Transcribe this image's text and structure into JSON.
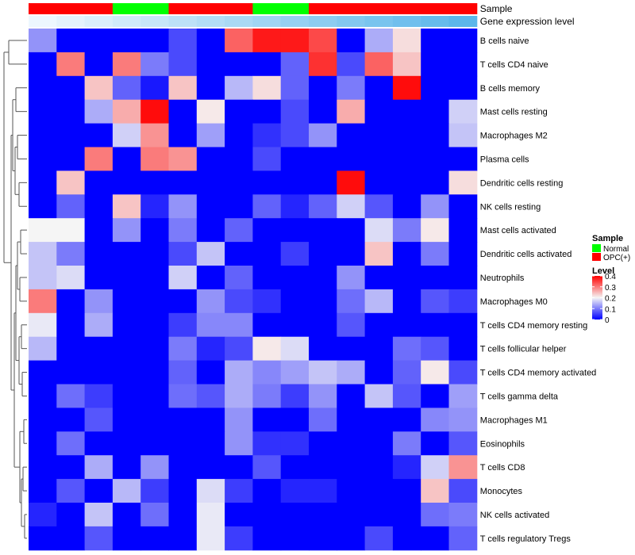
{
  "chart_data": {
    "type": "heatmap",
    "annotations": [
      {
        "name": "Sample",
        "key": "sample"
      },
      {
        "name": "Gene expression level",
        "key": "gene"
      }
    ],
    "columns": [
      {
        "sample": "OPC(+)",
        "gene": 0.03
      },
      {
        "sample": "OPC(+)",
        "gene": 0.06
      },
      {
        "sample": "OPC(+)",
        "gene": 0.09
      },
      {
        "sample": "Normal",
        "gene": 0.12
      },
      {
        "sample": "Normal",
        "gene": 0.15
      },
      {
        "sample": "OPC(+)",
        "gene": 0.18
      },
      {
        "sample": "OPC(+)",
        "gene": 0.21
      },
      {
        "sample": "OPC(+)",
        "gene": 0.24
      },
      {
        "sample": "Normal",
        "gene": 0.27
      },
      {
        "sample": "Normal",
        "gene": 0.3
      },
      {
        "sample": "OPC(+)",
        "gene": 0.33
      },
      {
        "sample": "OPC(+)",
        "gene": 0.36
      },
      {
        "sample": "OPC(+)",
        "gene": 0.39
      },
      {
        "sample": "OPC(+)",
        "gene": 0.42
      },
      {
        "sample": "OPC(+)",
        "gene": 0.45
      },
      {
        "sample": "OPC(+)",
        "gene": 0.48
      }
    ],
    "rows": [
      "B cells naive",
      "T cells CD4 naive",
      "B cells memory",
      "Mast cells resting",
      "Macrophages M2",
      "Plasma cells",
      "Dendritic cells resting",
      "NK cells resting",
      "Mast cells activated",
      "Dendritic cells activated",
      "Neutrophils",
      "Macrophages M0",
      "T cells CD4 memory resting",
      "T cells follicular helper",
      "T cells CD4 memory activated",
      "T cells gamma delta",
      "Macrophages M1",
      "Eosinophils",
      "T cells CD8",
      "Monocytes",
      "NK cells activated",
      "T cells regulatory  Tregs"
    ],
    "values": [
      [
        0.12,
        0,
        0,
        0,
        0,
        0.06,
        0,
        0.32,
        0.38,
        0.38,
        0.34,
        0,
        0.14,
        0.22,
        0,
        0
      ],
      [
        0,
        0.3,
        0,
        0.3,
        0.1,
        0.06,
        0,
        0,
        0,
        0.08,
        0.36,
        0.06,
        0.32,
        0.24,
        0,
        0
      ],
      [
        0,
        0,
        0.24,
        0.08,
        0.02,
        0.24,
        0,
        0.15,
        0.22,
        0.08,
        0,
        0.1,
        0,
        0.39,
        0,
        0
      ],
      [
        0,
        0,
        0.14,
        0.26,
        0.39,
        0,
        0.21,
        0,
        0,
        0.06,
        0,
        0.26,
        0,
        0,
        0,
        0.17
      ],
      [
        0,
        0,
        0,
        0.17,
        0.28,
        0,
        0.13,
        0,
        0.04,
        0.06,
        0.12,
        0,
        0,
        0,
        0,
        0.16
      ],
      [
        0,
        0,
        0.3,
        0,
        0.3,
        0.28,
        0,
        0,
        0.06,
        0,
        0,
        0,
        0,
        0,
        0,
        0
      ],
      [
        0,
        0.24,
        0,
        0,
        0,
        0,
        0,
        0,
        0,
        0,
        0,
        0.39,
        0,
        0,
        0,
        0.22
      ],
      [
        0,
        0.08,
        0,
        0.24,
        0.03,
        0.12,
        0,
        0,
        0.08,
        0.03,
        0.08,
        0.17,
        0.07,
        0,
        0.12,
        0
      ],
      [
        0.2,
        0.2,
        0,
        0.12,
        0,
        0.1,
        0,
        0.08,
        0,
        0,
        0,
        0,
        0.18,
        0.1,
        0.21,
        0
      ],
      [
        0.16,
        0.1,
        0,
        0,
        0,
        0.06,
        0.16,
        0,
        0,
        0.05,
        0,
        0,
        0.24,
        0,
        0.1,
        0
      ],
      [
        0.16,
        0.18,
        0,
        0,
        0,
        0.17,
        0,
        0.08,
        0,
        0,
        0,
        0.12,
        0,
        0,
        0,
        0
      ],
      [
        0.3,
        0,
        0.12,
        0,
        0,
        0,
        0.12,
        0.06,
        0.04,
        0,
        0,
        0.09,
        0.15,
        0,
        0.07,
        0.05
      ],
      [
        0.19,
        0,
        0.14,
        0,
        0,
        0.05,
        0.11,
        0.11,
        0,
        0,
        0,
        0.07,
        0,
        0,
        0,
        0
      ],
      [
        0.15,
        0,
        0,
        0,
        0,
        0.1,
        0.03,
        0.06,
        0.21,
        0.18,
        0,
        0,
        0,
        0.09,
        0.07,
        0
      ],
      [
        0,
        0,
        0,
        0,
        0,
        0.08,
        0,
        0.14,
        0.11,
        0.13,
        0.16,
        0.14,
        0,
        0.08,
        0.21,
        0.06
      ],
      [
        0,
        0.09,
        0.05,
        0,
        0,
        0.09,
        0.07,
        0.14,
        0.1,
        0.05,
        0.12,
        0,
        0.16,
        0.07,
        0,
        0.13
      ],
      [
        0,
        0,
        0.07,
        0,
        0,
        0,
        0,
        0.12,
        0,
        0,
        0.09,
        0,
        0,
        0,
        0.11,
        0.12
      ],
      [
        0,
        0.09,
        0,
        0,
        0,
        0,
        0,
        0.12,
        0.04,
        0.04,
        0,
        0,
        0,
        0.1,
        0,
        0.07
      ],
      [
        0,
        0,
        0.14,
        0,
        0.12,
        0,
        0,
        0,
        0.07,
        0,
        0,
        0,
        0,
        0.03,
        0.17,
        0.28
      ],
      [
        0,
        0.07,
        0,
        0.15,
        0.05,
        0,
        0.18,
        0.05,
        0,
        0.03,
        0.03,
        0,
        0,
        0,
        0.24,
        0.06
      ],
      [
        0.03,
        0,
        0.16,
        0,
        0.09,
        0,
        0.19,
        0,
        0,
        0,
        0,
        0,
        0,
        0,
        0.09,
        0.1
      ],
      [
        0,
        0,
        0.07,
        0,
        0,
        0,
        0.19,
        0.05,
        0,
        0,
        0,
        0,
        0.06,
        0,
        0,
        0.08
      ]
    ],
    "color_scale": {
      "low": "#0000FF",
      "mid": "#F5F5F5",
      "high": "#FF0000",
      "min": 0,
      "mid_value": 0.2,
      "max": 0.4
    },
    "gene_scale": {
      "low": "#F7FBFF",
      "high": "#56B4E9",
      "min": 0,
      "max": 0.5
    },
    "legends": {
      "sample": {
        "title": "Sample",
        "entries": [
          {
            "label": "Normal",
            "color": "#00FF00"
          },
          {
            "label": "OPC(+)",
            "color": "#FF0000"
          }
        ]
      },
      "level": {
        "title": "Level",
        "ticks": [
          0.4,
          0.3,
          0.2,
          0.1,
          0
        ],
        "tick_labels": [
          "0.4",
          "0.3",
          "0.2",
          "0.1",
          "0"
        ]
      }
    },
    "dendrogram": "row",
    "grid": false
  }
}
